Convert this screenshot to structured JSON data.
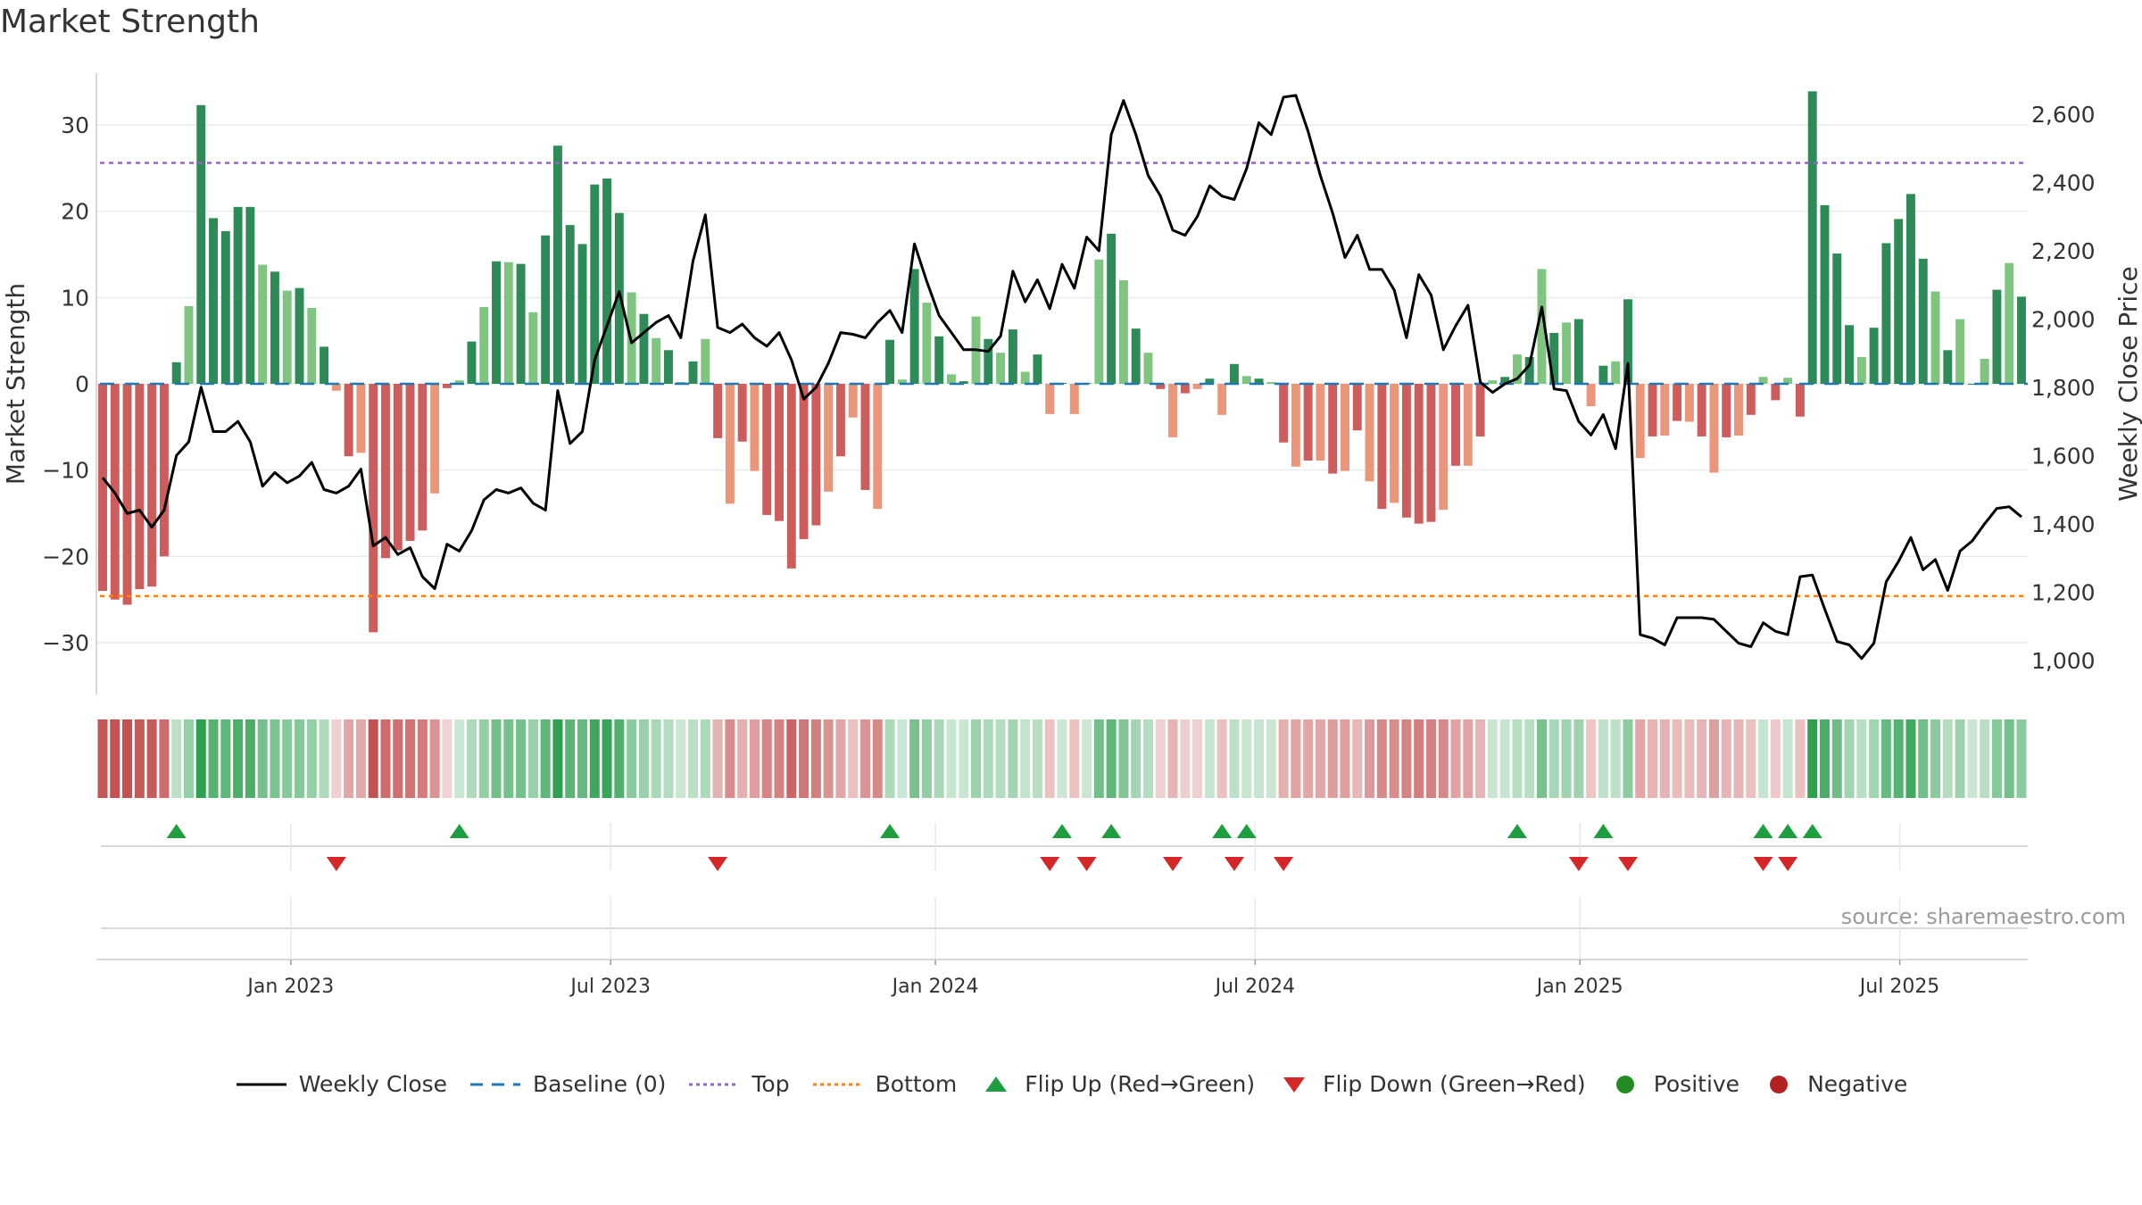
{
  "title": "Market Strength",
  "source": "source: sharemaestro.com",
  "colors": {
    "dark_green": "#2e8b57",
    "light_green": "#7fc47f",
    "dark_red": "#cd5c5c",
    "light_red": "#e9967a",
    "price_line": "#000000",
    "baseline": "#1f77b4",
    "top_line": "#9467bd",
    "bottom_line": "#ff7f0e",
    "flip_up": "#1e9e3e",
    "flip_down": "#d62728",
    "positive": "#228b22",
    "negative": "#b22222"
  },
  "chart_data": {
    "type": "bar",
    "title": "Market Strength",
    "ylabel_left": "Market Strength",
    "ylabel_right": "Weekly Close Price",
    "ylim_left": [
      -36,
      36
    ],
    "ylim_right": [
      900,
      2720
    ],
    "y_ticks_left": [
      30,
      20,
      10,
      0,
      -10,
      -20,
      -30
    ],
    "y_tick_labels_left": [
      "30",
      "20",
      "10",
      "0",
      "−10",
      "−20",
      "−30"
    ],
    "y_ticks_right": [
      2600,
      2400,
      2200,
      2000,
      1800,
      1600,
      1400,
      1200,
      1000
    ],
    "y_tick_labels_right": [
      "2,600",
      "2,400",
      "2,200",
      "2,000",
      "1,800",
      "1,600",
      "1,400",
      "1,200",
      "1,000"
    ],
    "x_tick_labels": [
      "Jan 2023",
      "Jul 2023",
      "Jan 2024",
      "Jul 2024",
      "Jan 2025",
      "Jul 2025"
    ],
    "x_tick_weeks": [
      15.3,
      41.3,
      67.7,
      93.7,
      120.1,
      146.1
    ],
    "top_level": 25.6,
    "bottom_level": -24.6,
    "strength": [
      -24,
      -25,
      -25.6,
      -23.8,
      -23.5,
      -20,
      2.5,
      9,
      32.3,
      19.2,
      17.7,
      20.5,
      20.5,
      13.8,
      13,
      10.8,
      11.1,
      8.8,
      4.3,
      -0.8,
      -8.4,
      -8,
      -28.8,
      -20.2,
      -19.3,
      -18.2,
      -17,
      -12.7,
      -0.5,
      0.4,
      4.9,
      8.9,
      14.2,
      14.1,
      13.9,
      8.3,
      17.2,
      27.6,
      18.4,
      16.2,
      23.1,
      23.8,
      19.8,
      10.6,
      8.1,
      5.3,
      3.9,
      0.2,
      2.6,
      5.2,
      -6.3,
      -13.9,
      -6.7,
      -10.1,
      -15.2,
      -15.9,
      -21.4,
      -18,
      -16.4,
      -12.5,
      -8.4,
      -3.9,
      -12.3,
      -14.5,
      5.1,
      0.5,
      13.3,
      9.4,
      5.5,
      1.1,
      0.3,
      7.8,
      5.2,
      3.6,
      6.3,
      1.4,
      3.4,
      -3.5,
      0.1,
      -3.5,
      0.1,
      14.4,
      17.4,
      12,
      6.4,
      3.6,
      -0.6,
      -6.2,
      -1.1,
      -0.6,
      0.6,
      -3.6,
      2.3,
      0.9,
      0.6,
      0.2,
      -6.8,
      -9.6,
      -8.9,
      -8.9,
      -10.4,
      -10.1,
      -5.4,
      -11.3,
      -14.5,
      -13.8,
      -15.5,
      -16.2,
      -16,
      -14.6,
      -9.5,
      -9.5,
      -6.1,
      0.4,
      0.8,
      3.4,
      3.1,
      13.3,
      5.9,
      7.1,
      7.5,
      -2.6,
      2.1,
      2.6,
      9.8,
      -8.6,
      -6.1,
      -6,
      -4.3,
      -4.4,
      -6.1,
      -10.3,
      -6.2,
      -6,
      -3.6,
      0.8,
      -1.9,
      0.7,
      -3.8,
      33.9,
      20.7,
      15.1,
      6.8,
      3.1,
      6.5,
      16.3,
      19.1,
      22,
      14.5,
      10.7,
      3.9,
      7.5,
      0,
      2.9,
      10.9,
      14,
      10.1
    ],
    "weekly_close": [
      1535,
      1490,
      1430,
      1440,
      1390,
      1440,
      1600,
      1640,
      1800,
      1670,
      1670,
      1700,
      1640,
      1510,
      1550,
      1520,
      1540,
      1580,
      1500,
      1490,
      1510,
      1560,
      1335,
      1360,
      1310,
      1330,
      1245,
      1210,
      1340,
      1320,
      1380,
      1470,
      1500,
      1490,
      1505,
      1460,
      1440,
      1790,
      1635,
      1670,
      1880,
      1980,
      2080,
      1930,
      1960,
      1990,
      2010,
      1945,
      2170,
      2305,
      1975,
      1960,
      1985,
      1945,
      1920,
      1960,
      1880,
      1765,
      1800,
      1870,
      1960,
      1955,
      1945,
      1990,
      2025,
      1960,
      2220,
      2110,
      2010,
      1960,
      1910,
      1910,
      1905,
      1950,
      2140,
      2050,
      2115,
      2030,
      2160,
      2090,
      2240,
      2200,
      2540,
      2640,
      2540,
      2420,
      2360,
      2260,
      2245,
      2300,
      2390,
      2360,
      2350,
      2440,
      2575,
      2540,
      2650,
      2655,
      2550,
      2420,
      2310,
      2180,
      2245,
      2145,
      2145,
      2085,
      1945,
      2130,
      2070,
      1910,
      1980,
      2040,
      1815,
      1785,
      1810,
      1825,
      1865,
      2035,
      1795,
      1790,
      1700,
      1660,
      1720,
      1620,
      1870,
      1075,
      1065,
      1045,
      1125,
      1125,
      1125,
      1120,
      1085,
      1050,
      1040,
      1110,
      1085,
      1075,
      1245,
      1250,
      1150,
      1055,
      1045,
      1005,
      1050,
      1230,
      1290,
      1360,
      1265,
      1295,
      1205,
      1320,
      1350,
      1400,
      1445,
      1450,
      1420
    ],
    "flip_up_weeks": [
      6,
      29,
      64,
      78,
      82,
      91,
      93,
      115,
      122,
      135,
      137,
      139
    ],
    "flip_down_weeks": [
      19,
      50,
      77,
      80,
      87,
      92,
      96,
      120,
      124,
      135,
      137
    ]
  },
  "legend": [
    {
      "key": "line",
      "label": "Weekly Close"
    },
    {
      "key": "baseline",
      "label": "Baseline (0)"
    },
    {
      "key": "top",
      "label": "Top"
    },
    {
      "key": "bottom",
      "label": "Bottom"
    },
    {
      "key": "flip_up",
      "label": "Flip Up (Red→Green)"
    },
    {
      "key": "flip_down",
      "label": "Flip Down (Green→Red)"
    },
    {
      "key": "positive",
      "label": "Positive"
    },
    {
      "key": "negative",
      "label": "Negative"
    }
  ]
}
